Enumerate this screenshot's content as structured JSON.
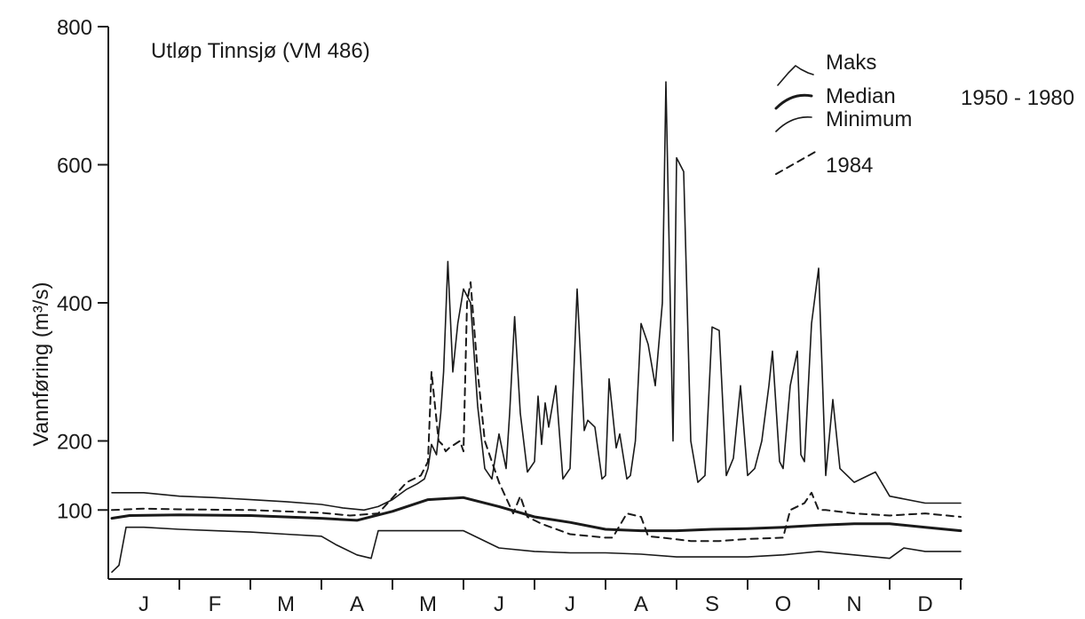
{
  "chart_data": {
    "type": "line",
    "title": "Utløp Tinnsjø (VM 486)",
    "ylabel": "Vannføring (m³/s)",
    "xlabel": "",
    "ylim": [
      0,
      800
    ],
    "yticks": [
      100,
      200,
      400,
      600,
      800
    ],
    "xlim": [
      0,
      12
    ],
    "categories": [
      "J",
      "F",
      "M",
      "A",
      "M",
      "J",
      "J",
      "A",
      "S",
      "O",
      "N",
      "D"
    ],
    "period_label": "1950 - 1980",
    "grid": false,
    "legend_position": "top-right",
    "x_unit": "month",
    "series": [
      {
        "name": "Maks",
        "style": "thin",
        "x": [
          0.05,
          0.5,
          1.0,
          1.5,
          2.0,
          2.5,
          3.0,
          3.3,
          3.6,
          3.8,
          4.0,
          4.2,
          4.35,
          4.45,
          4.5,
          4.55,
          4.62,
          4.68,
          4.72,
          4.78,
          4.85,
          4.92,
          5.0,
          5.1,
          5.2,
          5.3,
          5.4,
          5.5,
          5.6,
          5.65,
          5.72,
          5.8,
          5.9,
          6.0,
          6.05,
          6.1,
          6.15,
          6.2,
          6.3,
          6.4,
          6.5,
          6.6,
          6.7,
          6.75,
          6.85,
          6.95,
          7.0,
          7.05,
          7.15,
          7.2,
          7.3,
          7.35,
          7.42,
          7.5,
          7.6,
          7.7,
          7.8,
          7.85,
          7.95,
          8.0,
          8.1,
          8.2,
          8.3,
          8.4,
          8.5,
          8.6,
          8.7,
          8.8,
          8.9,
          9.0,
          9.1,
          9.2,
          9.3,
          9.35,
          9.45,
          9.5,
          9.6,
          9.7,
          9.75,
          9.8,
          9.9,
          10.0,
          10.1,
          10.2,
          10.3,
          10.5,
          10.8,
          11.0,
          11.5,
          12.0
        ],
        "values": [
          125,
          125,
          120,
          118,
          115,
          112,
          108,
          103,
          100,
          105,
          115,
          130,
          138,
          145,
          160,
          195,
          180,
          240,
          300,
          460,
          300,
          370,
          420,
          400,
          250,
          160,
          145,
          210,
          160,
          240,
          380,
          240,
          155,
          170,
          265,
          195,
          255,
          220,
          280,
          145,
          160,
          420,
          215,
          230,
          220,
          145,
          150,
          290,
          190,
          210,
          145,
          150,
          200,
          370,
          340,
          280,
          400,
          720,
          200,
          610,
          590,
          200,
          140,
          150,
          365,
          360,
          150,
          175,
          280,
          150,
          160,
          200,
          280,
          330,
          170,
          160,
          280,
          330,
          180,
          170,
          370,
          450,
          150,
          260,
          160,
          140,
          155,
          120,
          110,
          110
        ],
        "color": "#1a1a1a"
      },
      {
        "name": "Median",
        "style": "thick",
        "x": [
          0.05,
          0.3,
          1.0,
          2.0,
          3.0,
          3.5,
          4.0,
          4.5,
          5.0,
          5.5,
          6.0,
          6.5,
          7.0,
          7.5,
          8.0,
          8.5,
          9.0,
          9.5,
          10.0,
          10.5,
          11.0,
          11.5,
          12.0
        ],
        "values": [
          88,
          92,
          93,
          92,
          88,
          85,
          98,
          115,
          118,
          105,
          90,
          82,
          72,
          70,
          70,
          72,
          73,
          75,
          78,
          80,
          80,
          75,
          70
        ],
        "color": "#1a1a1a"
      },
      {
        "name": "Minimum",
        "style": "thin",
        "x": [
          0.05,
          0.15,
          0.25,
          0.5,
          1.0,
          1.5,
          2.0,
          2.5,
          3.0,
          3.2,
          3.5,
          3.7,
          3.8,
          4.0,
          4.5,
          5.0,
          5.5,
          6.0,
          6.5,
          7.0,
          7.5,
          8.0,
          8.5,
          9.0,
          9.5,
          10.0,
          10.5,
          11.0,
          11.2,
          11.5,
          12.0
        ],
        "values": [
          10,
          20,
          75,
          75,
          72,
          70,
          68,
          65,
          62,
          50,
          35,
          30,
          70,
          70,
          70,
          70,
          45,
          40,
          38,
          38,
          36,
          32,
          32,
          32,
          35,
          40,
          35,
          30,
          45,
          40,
          40
        ],
        "color": "#1a1a1a"
      },
      {
        "name": "1984",
        "style": "dashed",
        "x": [
          0.05,
          0.5,
          1.0,
          2.0,
          3.0,
          3.4,
          3.8,
          4.2,
          4.4,
          4.5,
          4.55,
          4.6,
          4.65,
          4.7,
          4.75,
          4.8,
          4.95,
          5.0,
          5.05,
          5.1,
          5.2,
          5.3,
          5.5,
          5.7,
          5.8,
          5.9,
          6.0,
          6.1,
          6.5,
          6.8,
          7.0,
          7.1,
          7.3,
          7.5,
          7.6,
          7.8,
          8.2,
          8.6,
          9.0,
          9.5,
          9.6,
          9.8,
          9.9,
          10.0,
          10.1,
          10.5,
          11.0,
          11.5,
          12.0
        ],
        "values": [
          100,
          102,
          101,
          100,
          96,
          92,
          95,
          140,
          150,
          170,
          300,
          250,
          200,
          195,
          185,
          190,
          200,
          185,
          400,
          430,
          300,
          200,
          140,
          95,
          120,
          90,
          85,
          80,
          65,
          62,
          60,
          60,
          95,
          90,
          62,
          60,
          55,
          55,
          58,
          60,
          100,
          110,
          125,
          100,
          100,
          95,
          92,
          95,
          90
        ],
        "color": "#1a1a1a"
      }
    ]
  }
}
